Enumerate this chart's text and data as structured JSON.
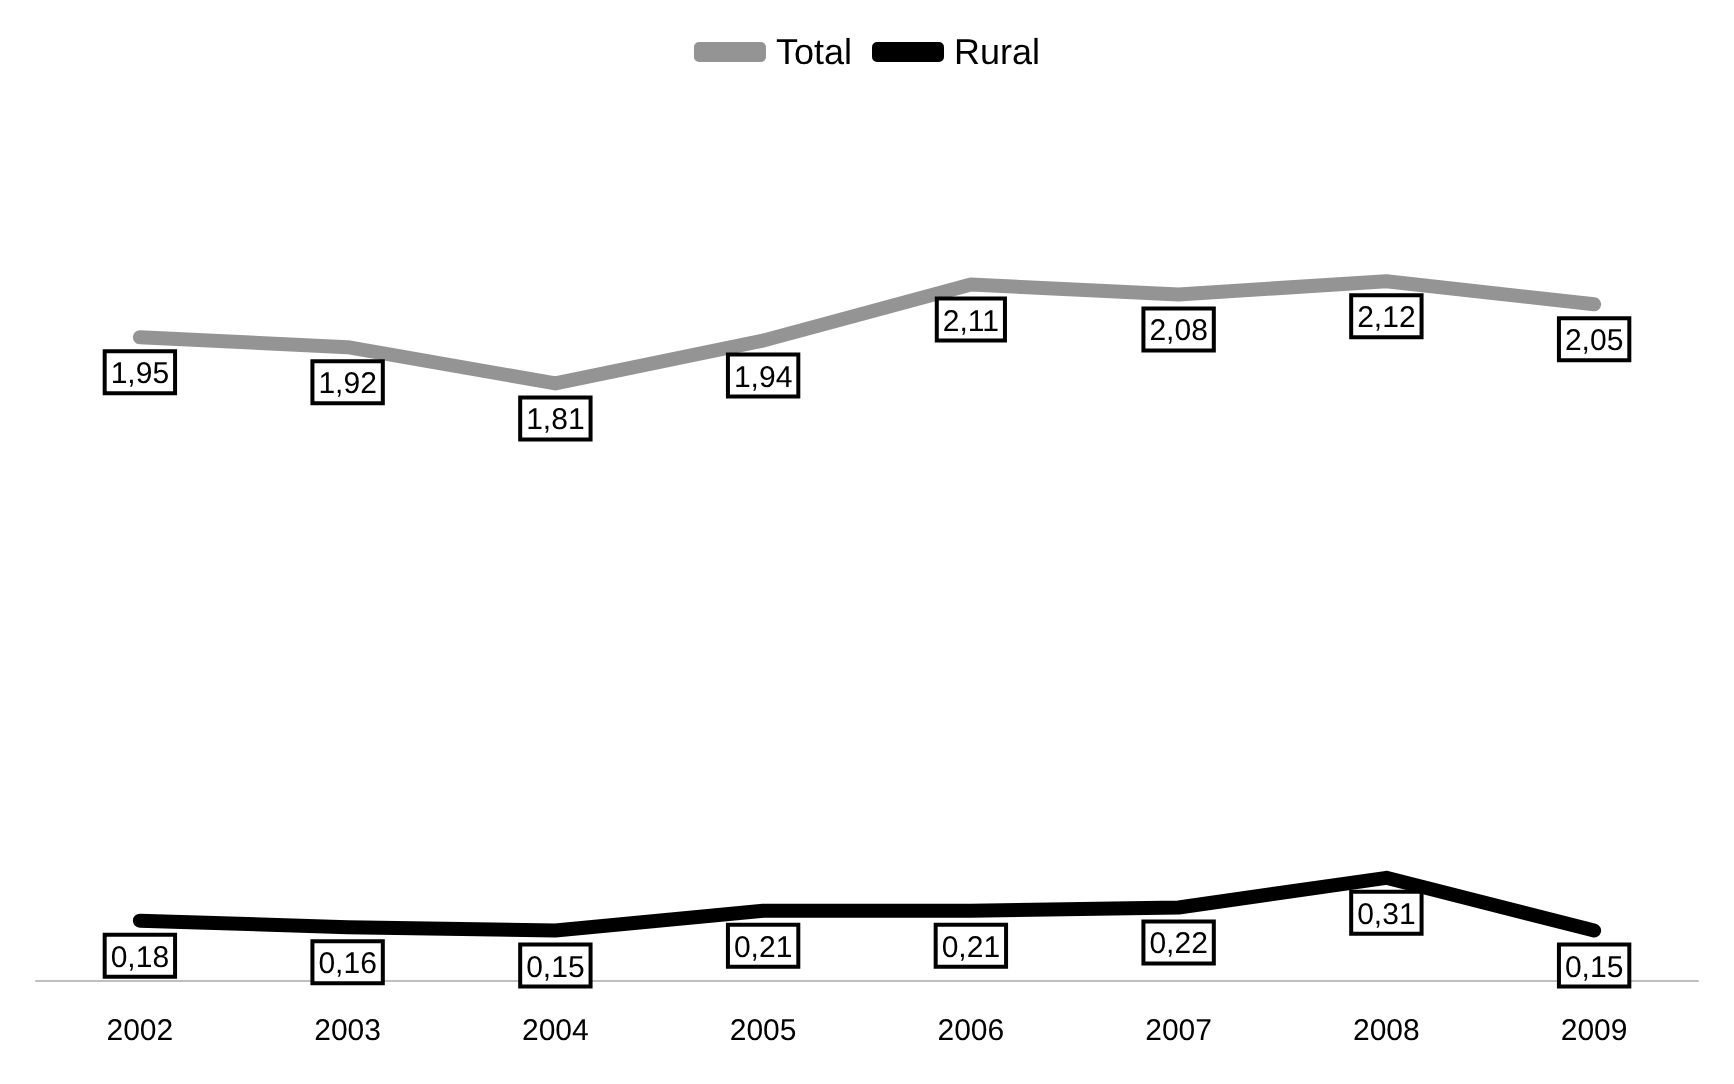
{
  "chart_data": {
    "type": "line",
    "categories": [
      "2002",
      "2003",
      "2004",
      "2005",
      "2006",
      "2007",
      "2008",
      "2009"
    ],
    "series": [
      {
        "name": "Total",
        "color": "#949494",
        "values": [
          1.95,
          1.92,
          1.81,
          1.94,
          2.11,
          2.08,
          2.12,
          2.05
        ],
        "value_labels": [
          "1,95",
          "1,92",
          "1,81",
          "1,94",
          "2,11",
          "2,08",
          "2,12",
          "2,05"
        ]
      },
      {
        "name": "Rural",
        "color": "#000000",
        "values": [
          0.18,
          0.16,
          0.15,
          0.21,
          0.21,
          0.22,
          0.31,
          0.15
        ],
        "value_labels": [
          "0,18",
          "0,16",
          "0,15",
          "0,21",
          "0,21",
          "0,22",
          "0,31",
          "0,15"
        ]
      }
    ],
    "legend": "top",
    "grid": false,
    "marker": "none",
    "line_style": "solid"
  }
}
